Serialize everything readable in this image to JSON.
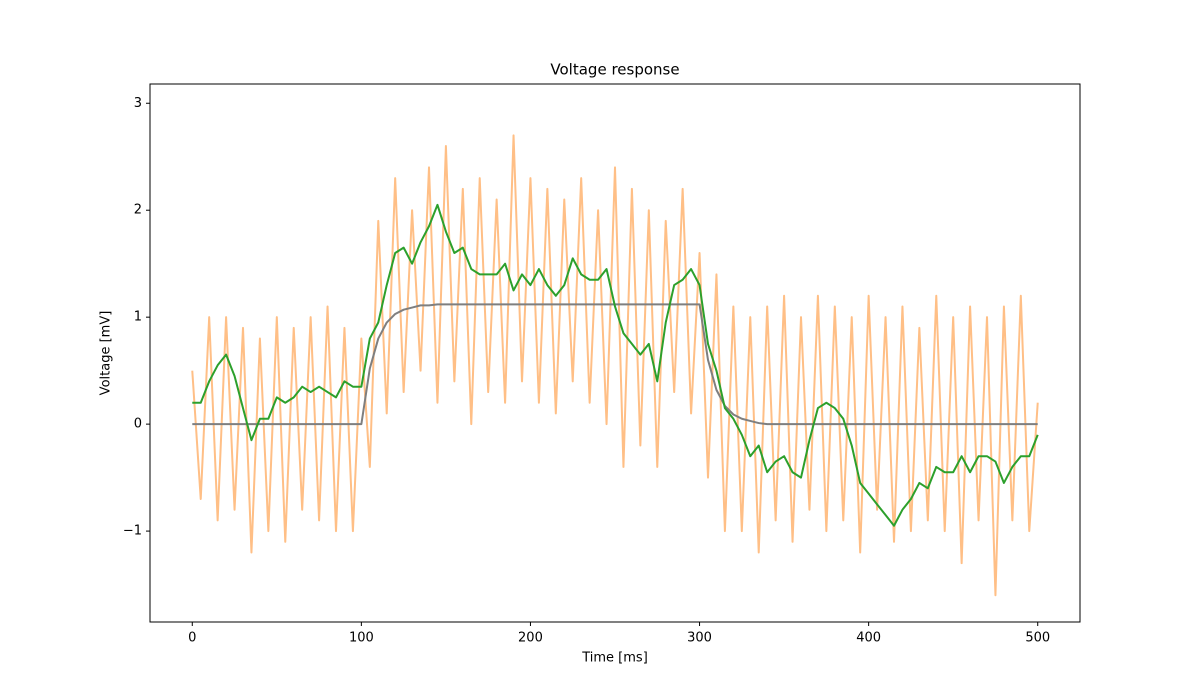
{
  "chart_data": {
    "type": "line",
    "title": "Voltage response",
    "x_label": "Time [ms]",
    "y_label": "Voltage [mV]",
    "xlim": [
      -25,
      525
    ],
    "ylim": [
      -1.85,
      3.18
    ],
    "xticks": [
      0,
      100,
      200,
      300,
      400,
      500
    ],
    "yticks": [
      {
        "value": -1,
        "label": "−1"
      },
      0,
      1,
      2,
      3
    ],
    "x": [
      0,
      5,
      10,
      15,
      20,
      25,
      30,
      35,
      40,
      45,
      50,
      55,
      60,
      65,
      70,
      75,
      80,
      85,
      90,
      95,
      100,
      105,
      110,
      115,
      120,
      125,
      130,
      135,
      140,
      145,
      150,
      155,
      160,
      165,
      170,
      175,
      180,
      185,
      190,
      195,
      200,
      205,
      210,
      215,
      220,
      225,
      230,
      235,
      240,
      245,
      250,
      255,
      260,
      265,
      270,
      275,
      280,
      285,
      290,
      295,
      300,
      305,
      310,
      315,
      320,
      325,
      330,
      335,
      340,
      345,
      350,
      355,
      360,
      365,
      370,
      375,
      380,
      385,
      390,
      395,
      400,
      405,
      410,
      415,
      420,
      425,
      430,
      435,
      440,
      445,
      450,
      455,
      460,
      465,
      470,
      475,
      480,
      485,
      490,
      495,
      500
    ],
    "series": [
      {
        "color": "#ffbf86",
        "width": 2,
        "values": [
          0.5,
          -0.7,
          1.0,
          -0.9,
          1.0,
          -0.8,
          0.9,
          -1.2,
          0.8,
          -1.0,
          1.0,
          -1.1,
          0.9,
          -0.8,
          1.0,
          -0.9,
          1.1,
          -1.0,
          0.9,
          -1.0,
          0.8,
          -0.4,
          1.9,
          0.1,
          2.3,
          0.3,
          2.0,
          0.5,
          2.4,
          0.2,
          2.6,
          0.4,
          2.2,
          0.0,
          2.3,
          0.3,
          2.1,
          0.2,
          2.7,
          0.4,
          2.3,
          0.2,
          2.2,
          0.1,
          2.1,
          0.4,
          2.3,
          0.2,
          2.0,
          0.0,
          2.4,
          -0.4,
          2.2,
          -0.2,
          2.0,
          -0.4,
          1.9,
          0.3,
          2.2,
          0.1,
          1.6,
          -0.5,
          1.4,
          -1.0,
          1.1,
          -1.0,
          1.0,
          -1.2,
          1.1,
          -0.9,
          1.2,
          -1.1,
          1.0,
          -0.8,
          1.2,
          -1.0,
          1.1,
          -0.9,
          1.0,
          -1.2,
          1.2,
          -0.8,
          1.0,
          -1.1,
          1.1,
          -1.0,
          0.9,
          -0.9,
          1.2,
          -1.0,
          1.0,
          -1.3,
          1.1,
          -0.9,
          1.0,
          -1.6,
          1.1,
          -0.9,
          1.2,
          -1.0,
          0.2
        ]
      },
      {
        "color": "#7f7f7f",
        "width": 2,
        "values": [
          0,
          0,
          0,
          0,
          0,
          0,
          0,
          0,
          0,
          0,
          0,
          0,
          0,
          0,
          0,
          0,
          0,
          0,
          0,
          0,
          0,
          0.52,
          0.8,
          0.95,
          1.03,
          1.07,
          1.09,
          1.11,
          1.11,
          1.12,
          1.12,
          1.12,
          1.12,
          1.12,
          1.12,
          1.12,
          1.12,
          1.12,
          1.12,
          1.12,
          1.12,
          1.12,
          1.12,
          1.12,
          1.12,
          1.12,
          1.12,
          1.12,
          1.12,
          1.12,
          1.12,
          1.12,
          1.12,
          1.12,
          1.12,
          1.12,
          1.12,
          1.12,
          1.12,
          1.12,
          1.12,
          0.6,
          0.32,
          0.17,
          0.09,
          0.05,
          0.03,
          0.01,
          0,
          0,
          0,
          0,
          0,
          0,
          0,
          0,
          0,
          0,
          0,
          0,
          0,
          0,
          0,
          0,
          0,
          0,
          0,
          0,
          0,
          0,
          0,
          0,
          0,
          0,
          0,
          0,
          0,
          0,
          0,
          0,
          0
        ]
      },
      {
        "color": "#2ca02c",
        "width": 2,
        "values": [
          0.2,
          0.2,
          0.4,
          0.55,
          0.65,
          0.45,
          0.15,
          -0.15,
          0.05,
          0.05,
          0.25,
          0.2,
          0.25,
          0.35,
          0.3,
          0.35,
          0.3,
          0.25,
          0.4,
          0.35,
          0.35,
          0.8,
          0.95,
          1.3,
          1.6,
          1.65,
          1.5,
          1.7,
          1.85,
          2.05,
          1.8,
          1.6,
          1.65,
          1.45,
          1.4,
          1.4,
          1.4,
          1.5,
          1.25,
          1.4,
          1.3,
          1.45,
          1.3,
          1.2,
          1.3,
          1.55,
          1.4,
          1.35,
          1.35,
          1.45,
          1.1,
          0.85,
          0.75,
          0.65,
          0.75,
          0.4,
          0.95,
          1.3,
          1.35,
          1.45,
          1.3,
          0.75,
          0.5,
          0.15,
          0.05,
          -0.1,
          -0.3,
          -0.2,
          -0.45,
          -0.35,
          -0.3,
          -0.45,
          -0.5,
          -0.15,
          0.15,
          0.2,
          0.15,
          0.05,
          -0.2,
          -0.55,
          -0.65,
          -0.75,
          -0.85,
          -0.95,
          -0.8,
          -0.7,
          -0.55,
          -0.6,
          -0.4,
          -0.45,
          -0.45,
          -0.3,
          -0.45,
          -0.3,
          -0.3,
          -0.35,
          -0.55,
          -0.4,
          -0.3,
          -0.3,
          -0.1
        ]
      }
    ]
  }
}
